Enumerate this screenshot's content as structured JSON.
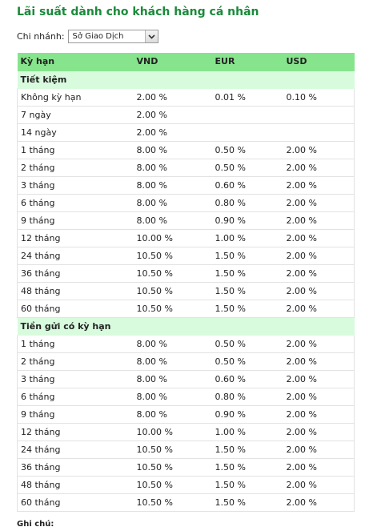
{
  "page": {
    "title": "Lãi suất dành cho khách hàng cá nhân"
  },
  "branch": {
    "label": "Chi nhánh:",
    "selected": "Sở Giao Dịch"
  },
  "icons": {
    "dropdown": "chevron-down-icon"
  },
  "colors": {
    "title": "#1a8a3a",
    "header_bg": "#86e48d",
    "group_bg": "#d8fbde"
  },
  "table": {
    "headers": [
      "Kỳ hạn",
      "VND",
      "EUR",
      "USD"
    ],
    "groups": [
      {
        "title": "Tiết kiệm",
        "rows": [
          [
            "Không kỳ hạn",
            "2.00 %",
            "0.01 %",
            "0.10 %"
          ],
          [
            "7 ngày",
            "2.00 %",
            "",
            ""
          ],
          [
            "14 ngày",
            "2.00 %",
            "",
            ""
          ],
          [
            "1 tháng",
            "8.00 %",
            "0.50 %",
            "2.00 %"
          ],
          [
            "2 tháng",
            "8.00 %",
            "0.50 %",
            "2.00 %"
          ],
          [
            "3 tháng",
            "8.00 %",
            "0.60 %",
            "2.00 %"
          ],
          [
            "6 tháng",
            "8.00 %",
            "0.80 %",
            "2.00 %"
          ],
          [
            "9 tháng",
            "8.00 %",
            "0.90 %",
            "2.00 %"
          ],
          [
            "12 tháng",
            "10.00 %",
            "1.00 %",
            "2.00 %"
          ],
          [
            "24 tháng",
            "10.50 %",
            "1.50 %",
            "2.00 %"
          ],
          [
            "36 tháng",
            "10.50 %",
            "1.50 %",
            "2.00 %"
          ],
          [
            "48 tháng",
            "10.50 %",
            "1.50 %",
            "2.00 %"
          ],
          [
            "60 tháng",
            "10.50 %",
            "1.50 %",
            "2.00 %"
          ]
        ]
      },
      {
        "title": "Tiền gửi có kỳ hạn",
        "rows": [
          [
            "1 tháng",
            "8.00 %",
            "0.50 %",
            "2.00 %"
          ],
          [
            "2 tháng",
            "8.00 %",
            "0.50 %",
            "2.00 %"
          ],
          [
            "3 tháng",
            "8.00 %",
            "0.60 %",
            "2.00 %"
          ],
          [
            "6 tháng",
            "8.00 %",
            "0.80 %",
            "2.00 %"
          ],
          [
            "9 tháng",
            "8.00 %",
            "0.90 %",
            "2.00 %"
          ],
          [
            "12 tháng",
            "10.00 %",
            "1.00 %",
            "2.00 %"
          ],
          [
            "24 tháng",
            "10.50 %",
            "1.50 %",
            "2.00 %"
          ],
          [
            "36 tháng",
            "10.50 %",
            "1.50 %",
            "2.00 %"
          ],
          [
            "48 tháng",
            "10.50 %",
            "1.50 %",
            "2.00 %"
          ],
          [
            "60 tháng",
            "10.50 %",
            "1.50 %",
            "2.00 %"
          ]
        ]
      }
    ]
  },
  "note": {
    "label": "Ghi chú:"
  }
}
